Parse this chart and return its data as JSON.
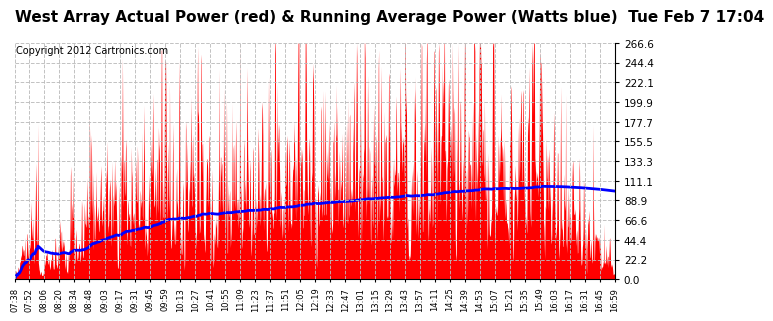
{
  "title": "West Array Actual Power (red) & Running Average Power (Watts blue)  Tue Feb 7 17:04",
  "copyright": "Copyright 2012 Cartronics.com",
  "ylabel_values": [
    0.0,
    22.2,
    44.4,
    66.6,
    88.9,
    111.1,
    133.3,
    155.5,
    177.7,
    199.9,
    222.1,
    244.4,
    266.6
  ],
  "ymax": 266.6,
  "ymin": 0.0,
  "background_color": "#ffffff",
  "plot_bg_color": "#ffffff",
  "grid_color": "#bbbbbb",
  "bar_color": "red",
  "avg_color": "blue",
  "title_fontsize": 11,
  "copyright_fontsize": 7,
  "tick_times": [
    "07:38",
    "07:52",
    "08:06",
    "08:20",
    "08:34",
    "08:48",
    "09:03",
    "09:17",
    "09:31",
    "09:45",
    "09:59",
    "10:13",
    "10:27",
    "10:41",
    "10:55",
    "11:09",
    "11:23",
    "11:37",
    "11:51",
    "12:05",
    "12:19",
    "12:33",
    "12:47",
    "13:01",
    "13:15",
    "13:29",
    "13:43",
    "13:57",
    "14:11",
    "14:25",
    "14:39",
    "14:53",
    "15:07",
    "15:21",
    "15:35",
    "15:49",
    "16:03",
    "16:17",
    "16:31",
    "16:45",
    "16:59"
  ]
}
